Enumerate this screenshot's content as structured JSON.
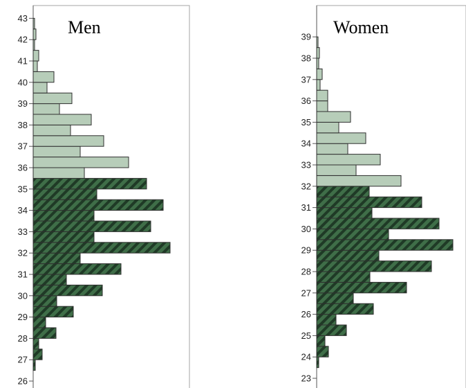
{
  "colors": {
    "light_fill": "#b7cdb9",
    "dark_fill": "#3f6e48",
    "stripe": "#1f3a26",
    "bar_stroke": "#2f2f2f",
    "frame": "#a6a6a6",
    "axis": "#555555"
  },
  "chart_data": [
    {
      "type": "bar",
      "orientation": "horizontal",
      "title": "Men",
      "ylim": [
        26,
        43
      ],
      "y_ticks": [
        26,
        27,
        28,
        29,
        30,
        31,
        32,
        33,
        34,
        35,
        36,
        37,
        38,
        39,
        40,
        41,
        42,
        43
      ],
      "y_tick_labels": [
        "26",
        "27",
        "28",
        "29",
        "30",
        "31",
        "32",
        "33",
        "34",
        "35",
        "36",
        "37",
        "38",
        "39",
        "40",
        "41",
        "42",
        "43"
      ],
      "bin_width": 0.5,
      "dark_below": 35.5,
      "bins_start": [
        26.5,
        27,
        27.5,
        28,
        28.5,
        29,
        29.5,
        30,
        30.5,
        31,
        31.5,
        32,
        32.5,
        33,
        33.5,
        34,
        34.5,
        35,
        35.5,
        36,
        36.5,
        37,
        37.5,
        38,
        38.5,
        39,
        39.5,
        40,
        40.5,
        41,
        41.5,
        42,
        42.5
      ],
      "values": [
        3,
        13,
        8,
        33,
        18,
        58,
        34,
        100,
        48,
        127,
        68,
        198,
        88,
        170,
        88,
        188,
        92,
        164,
        74,
        138,
        68,
        102,
        54,
        84,
        38,
        56,
        20,
        30,
        6,
        8,
        2,
        4,
        2
      ],
      "xlim": [
        0,
        220
      ]
    },
    {
      "type": "bar",
      "orientation": "horizontal",
      "title": "Women",
      "ylim": [
        23,
        39
      ],
      "y_ticks": [
        23,
        24,
        25,
        26,
        27,
        28,
        29,
        30,
        31,
        32,
        33,
        34,
        35,
        36,
        37,
        38,
        39
      ],
      "y_tick_labels": [
        "23",
        "24",
        "25",
        "26",
        "27",
        "28",
        "29",
        "30",
        "31",
        "32",
        "33",
        "34",
        "35",
        "36",
        "37",
        "38",
        "39"
      ],
      "bin_width": 0.5,
      "dark_below": 32,
      "bins_start": [
        23.5,
        24,
        24.5,
        25,
        25.5,
        26,
        26.5,
        27,
        27.5,
        28,
        28.5,
        29,
        29.5,
        30,
        30.5,
        31,
        31.5,
        32,
        32.5,
        33,
        33.5,
        34,
        34.5,
        35,
        35.5,
        36,
        36.5,
        37,
        37.5,
        38,
        38.5
      ],
      "values": [
        3,
        17,
        12,
        43,
        28,
        82,
        53,
        130,
        77,
        166,
        90,
        197,
        104,
        177,
        80,
        152,
        76,
        122,
        57,
        92,
        45,
        71,
        32,
        49,
        16,
        16,
        5,
        8,
        3,
        4,
        2
      ],
      "xlim": [
        0,
        200
      ]
    }
  ]
}
